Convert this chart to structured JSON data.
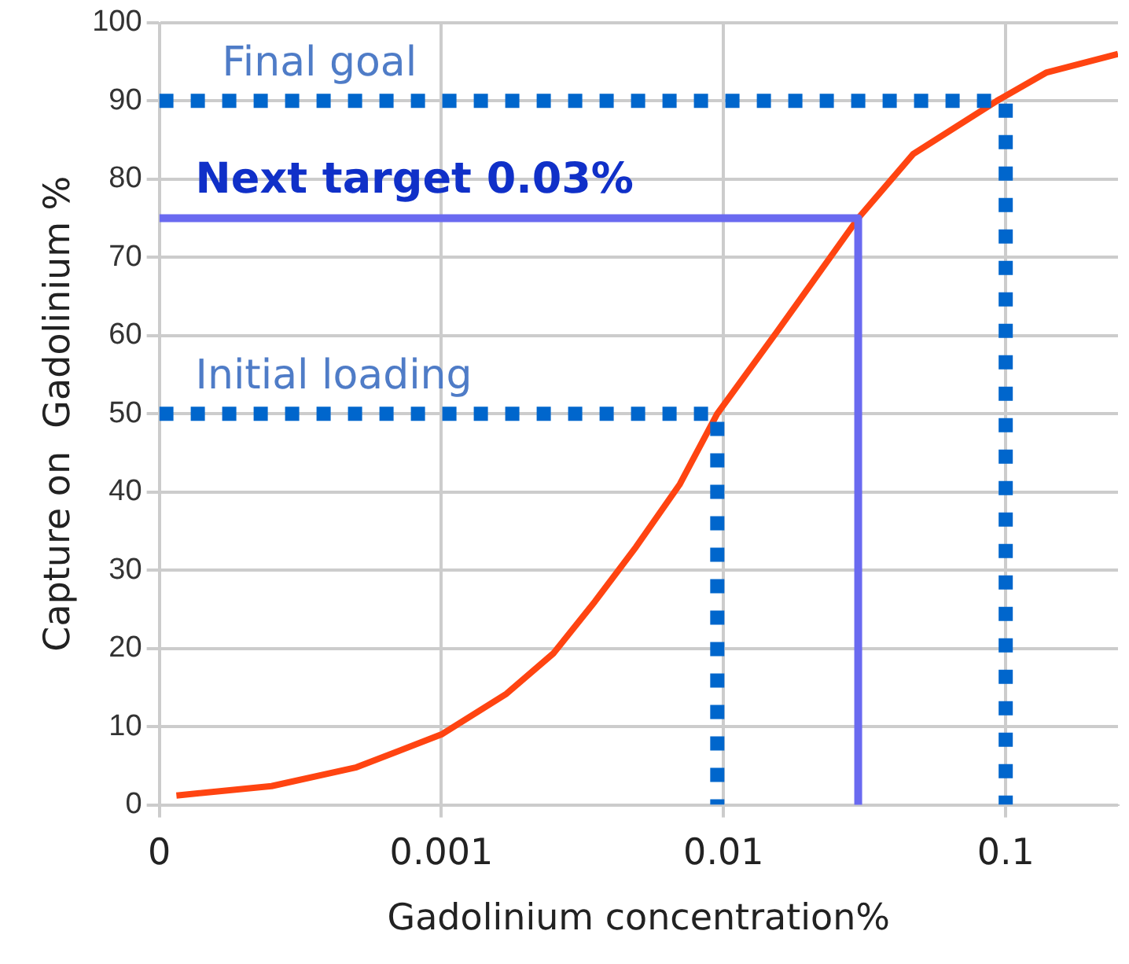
{
  "chart_data": {
    "type": "line",
    "xlabel": "Gadolinium concentration%",
    "ylabel": "Capture on  Gadolinium %",
    "log": "x",
    "xlim": [
      0.0001,
      0.25
    ],
    "xticks": [
      {
        "value": 0.0001,
        "label": "0"
      },
      0.001,
      0.01,
      0.1
    ],
    "ylim": [
      0,
      100
    ],
    "yticks": [
      0,
      10,
      20,
      30,
      40,
      50,
      60,
      70,
      80,
      90,
      100
    ],
    "grid": true,
    "legend": false,
    "marker": "none",
    "series": [
      {
        "color": "#ff4411",
        "x": [
          0.000115,
          0.00025,
          0.0005,
          0.001,
          0.0017,
          0.0025,
          0.0035,
          0.0049,
          0.007,
          0.0095,
          0.0154,
          0.025,
          0.03,
          0.047,
          0.093,
          0.139,
          0.25
        ],
        "values": [
          1.2,
          2.4,
          4.8,
          9,
          14.2,
          19.4,
          26,
          33,
          41,
          50,
          60.4,
          71,
          75,
          83.2,
          90,
          93.6,
          96
        ]
      },
      {
        "color": "#0066cc",
        "line_style": "dotted",
        "x": [
          0.0001,
          0.1,
          0.1
        ],
        "values": [
          90,
          90,
          0
        ]
      },
      {
        "color": "#6a6af0",
        "line_style": "solid",
        "x": [
          0.0001,
          0.03,
          0.03
        ],
        "values": [
          75,
          75,
          0
        ]
      },
      {
        "color": "#0066cc",
        "line_style": "dotted",
        "x": [
          0.0001,
          0.0095,
          0.0095
        ],
        "values": [
          50,
          50,
          0
        ]
      }
    ],
    "annotations": [
      "Final goal",
      "Next target 0.03%",
      "Initial loading"
    ]
  }
}
